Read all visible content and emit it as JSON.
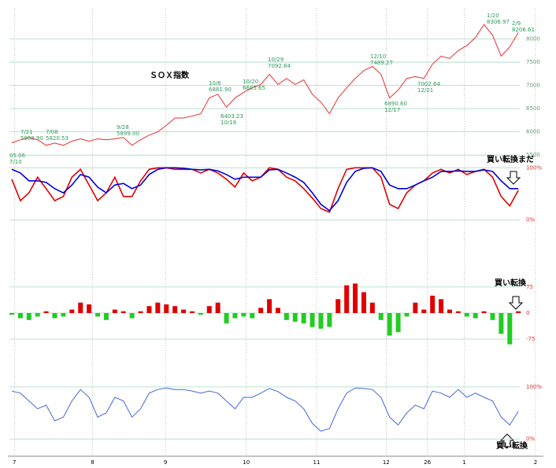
{
  "chart_data": [
    {
      "type": "line",
      "title": "ＳＯＸ指数",
      "x": [
        0,
        1,
        2,
        3,
        4,
        5,
        6,
        7,
        8,
        9,
        10,
        11,
        12,
        13,
        14,
        15,
        16,
        17,
        18,
        19,
        20,
        21,
        22,
        23,
        24,
        25,
        26,
        27,
        28,
        29,
        30,
        31,
        32,
        33,
        34,
        35,
        36,
        37,
        38,
        39,
        40,
        41,
        42,
        43,
        44,
        45,
        46,
        47,
        48,
        49,
        50,
        51,
        52,
        53,
        54,
        55,
        56,
        57,
        58,
        59
      ],
      "series": [
        {
          "color": "#e83030",
          "values": [
            5763,
            5830,
            5880,
            5830,
            5710,
            5760,
            5710,
            5800,
            5850,
            5800,
            5850,
            5830,
            5850,
            5880,
            5710,
            5830,
            5930,
            6000,
            6140,
            6300,
            6300,
            6340,
            6390,
            6730,
            6810,
            6530,
            6730,
            6850,
            6950,
            7020,
            7240,
            7020,
            7150,
            7020,
            7120,
            6810,
            6640,
            6390,
            6730,
            6950,
            7150,
            7320,
            7410,
            7240,
            6730,
            6900,
            7150,
            7190,
            7150,
            7460,
            7630,
            7580,
            7750,
            7860,
            8030,
            8310,
            8080,
            7630,
            7830,
            8140
          ]
        }
      ],
      "ylim": [
        5300,
        8500
      ],
      "yticks": [
        5500,
        6000,
        6500,
        7000,
        7500,
        8000
      ],
      "annotations": [
        [
          "05.06",
          "7/10"
        ],
        [
          "7/21",
          "5808.90"
        ],
        [
          "7/08",
          "5820.53"
        ],
        [
          "9/28",
          "5899.00"
        ],
        [
          "10/6",
          "6881.90"
        ],
        [
          "6403.23",
          "10/18"
        ],
        [
          "10/20",
          "6695.65"
        ],
        [
          "10/29",
          "7092.64"
        ],
        [
          "12/10",
          "7489.27"
        ],
        [
          "6890.60",
          "12/17"
        ],
        [
          "7002.64",
          "12/21"
        ],
        [
          "1/20",
          "8306.97"
        ],
        [
          "2/9",
          "8206.61"
        ]
      ]
    },
    {
      "type": "line",
      "series": [
        {
          "color": "#e00000",
          "values": [
            78,
            37,
            52,
            82,
            60,
            37,
            45,
            82,
            97,
            67,
            37,
            52,
            82,
            45,
            45,
            75,
            97,
            100,
            100,
            97,
            97,
            97,
            90,
            97,
            90,
            78,
            63,
            90,
            75,
            82,
            100,
            97,
            82,
            75,
            60,
            42,
            22,
            15,
            60,
            97,
            100,
            100,
            100,
            82,
            30,
            22,
            52,
            67,
            75,
            90,
            97,
            90,
            97,
            87,
            93,
            97,
            82,
            45,
            27,
            57
          ]
        },
        {
          "color": "#0000dd",
          "values": [
            97,
            90,
            75,
            75,
            72,
            60,
            52,
            67,
            87,
            82,
            63,
            52,
            67,
            70,
            60,
            67,
            87,
            97,
            100,
            100,
            99,
            97,
            96,
            97,
            94,
            87,
            78,
            82,
            82,
            82,
            96,
            97,
            90,
            82,
            72,
            52,
            30,
            18,
            37,
            72,
            93,
            99,
            100,
            93,
            67,
            60,
            60,
            67,
            75,
            82,
            93,
            93,
            94,
            93,
            93,
            96,
            93,
            75,
            60,
            60
          ]
        }
      ],
      "ylim": [
        -20,
        120
      ],
      "yticks": [
        {
          "value": 100,
          "label": "100%"
        },
        {
          "value": 0,
          "label": "0%"
        }
      ],
      "annotations": [
        [
          "買い転換まだ"
        ]
      ]
    },
    {
      "type": "bar",
      "series": [
        {
          "color": "#e00000",
          "negative_color": "#22cc22",
          "values": [
            -5,
            -15,
            -20,
            -10,
            5,
            -15,
            -10,
            10,
            30,
            25,
            -10,
            -20,
            10,
            5,
            -15,
            5,
            20,
            30,
            25,
            20,
            10,
            5,
            -5,
            20,
            30,
            -30,
            -15,
            -10,
            -15,
            15,
            40,
            15,
            -20,
            -25,
            -30,
            -40,
            -45,
            -40,
            40,
            80,
            85,
            60,
            30,
            -20,
            -65,
            -55,
            -10,
            30,
            10,
            50,
            40,
            10,
            5,
            -10,
            -15,
            5,
            -20,
            -60,
            -90,
            5
          ]
        }
      ],
      "ylim": [
        -120,
        120
      ],
      "yticks": [
        75,
        0,
        -75
      ],
      "annotations": [
        [
          "買い転換"
        ]
      ]
    },
    {
      "type": "line",
      "series": [
        {
          "color": "#4466dd",
          "values": [
            92,
            88,
            73,
            58,
            65,
            35,
            42,
            73,
            95,
            80,
            42,
            50,
            80,
            73,
            42,
            58,
            88,
            95,
            98,
            95,
            95,
            92,
            88,
            92,
            88,
            73,
            58,
            80,
            80,
            88,
            97,
            91,
            80,
            73,
            58,
            30,
            15,
            20,
            58,
            88,
            98,
            97,
            95,
            80,
            42,
            27,
            50,
            65,
            58,
            92,
            88,
            80,
            95,
            80,
            88,
            80,
            73,
            42,
            27,
            53
          ]
        }
      ],
      "ylim": [
        -30,
        130
      ],
      "yticks": [
        {
          "value": 100,
          "label": "100%"
        },
        {
          "value": 0,
          "label": "0%"
        }
      ],
      "annotations": [
        [
          "買い転換"
        ]
      ],
      "xlim": [
        0,
        61
      ],
      "xticks": [
        {
          "value": 0.3,
          "label": "7"
        },
        {
          "value": 9.4,
          "label": "8"
        },
        {
          "value": 17.9,
          "label": "9"
        },
        {
          "value": 27.3,
          "label": "10"
        },
        {
          "value": 35.5,
          "label": "11"
        },
        {
          "value": 43.6,
          "label": "12"
        },
        {
          "value": 48.4,
          "label": "26"
        },
        {
          "value": 52.7,
          "label": "1"
        },
        {
          "value": 61,
          "label": "2"
        }
      ]
    }
  ]
}
